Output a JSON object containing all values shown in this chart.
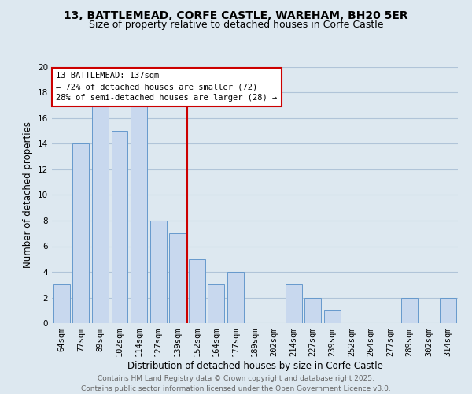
{
  "title": "13, BATTLEMEAD, CORFE CASTLE, WAREHAM, BH20 5ER",
  "subtitle": "Size of property relative to detached houses in Corfe Castle",
  "xlabel": "Distribution of detached houses by size in Corfe Castle",
  "ylabel": "Number of detached properties",
  "categories": [
    "64sqm",
    "77sqm",
    "89sqm",
    "102sqm",
    "114sqm",
    "127sqm",
    "139sqm",
    "152sqm",
    "164sqm",
    "177sqm",
    "189sqm",
    "202sqm",
    "214sqm",
    "227sqm",
    "239sqm",
    "252sqm",
    "264sqm",
    "277sqm",
    "289sqm",
    "302sqm",
    "314sqm"
  ],
  "values": [
    3,
    14,
    17,
    15,
    17,
    8,
    7,
    5,
    3,
    4,
    0,
    0,
    3,
    2,
    1,
    0,
    0,
    0,
    2,
    0,
    2
  ],
  "bar_color": "#c8d8ee",
  "bar_edge_color": "#6699cc",
  "vline_x_index": 6,
  "vline_color": "#cc0000",
  "annotation_title": "13 BATTLEMEAD: 137sqm",
  "annotation_line1": "← 72% of detached houses are smaller (72)",
  "annotation_line2": "28% of semi-detached houses are larger (28) →",
  "annotation_box_facecolor": "white",
  "annotation_box_edgecolor": "#cc0000",
  "ylim": [
    0,
    20
  ],
  "yticks": [
    0,
    2,
    4,
    6,
    8,
    10,
    12,
    14,
    16,
    18,
    20
  ],
  "grid_color": "#b0c4d8",
  "background_color": "#dde8f0",
  "footer_line1": "Contains HM Land Registry data © Crown copyright and database right 2025.",
  "footer_line2": "Contains public sector information licensed under the Open Government Licence v3.0.",
  "title_fontsize": 10,
  "subtitle_fontsize": 9,
  "xlabel_fontsize": 8.5,
  "ylabel_fontsize": 8.5,
  "tick_fontsize": 7.5,
  "footer_fontsize": 6.5,
  "ann_fontsize": 7.5
}
